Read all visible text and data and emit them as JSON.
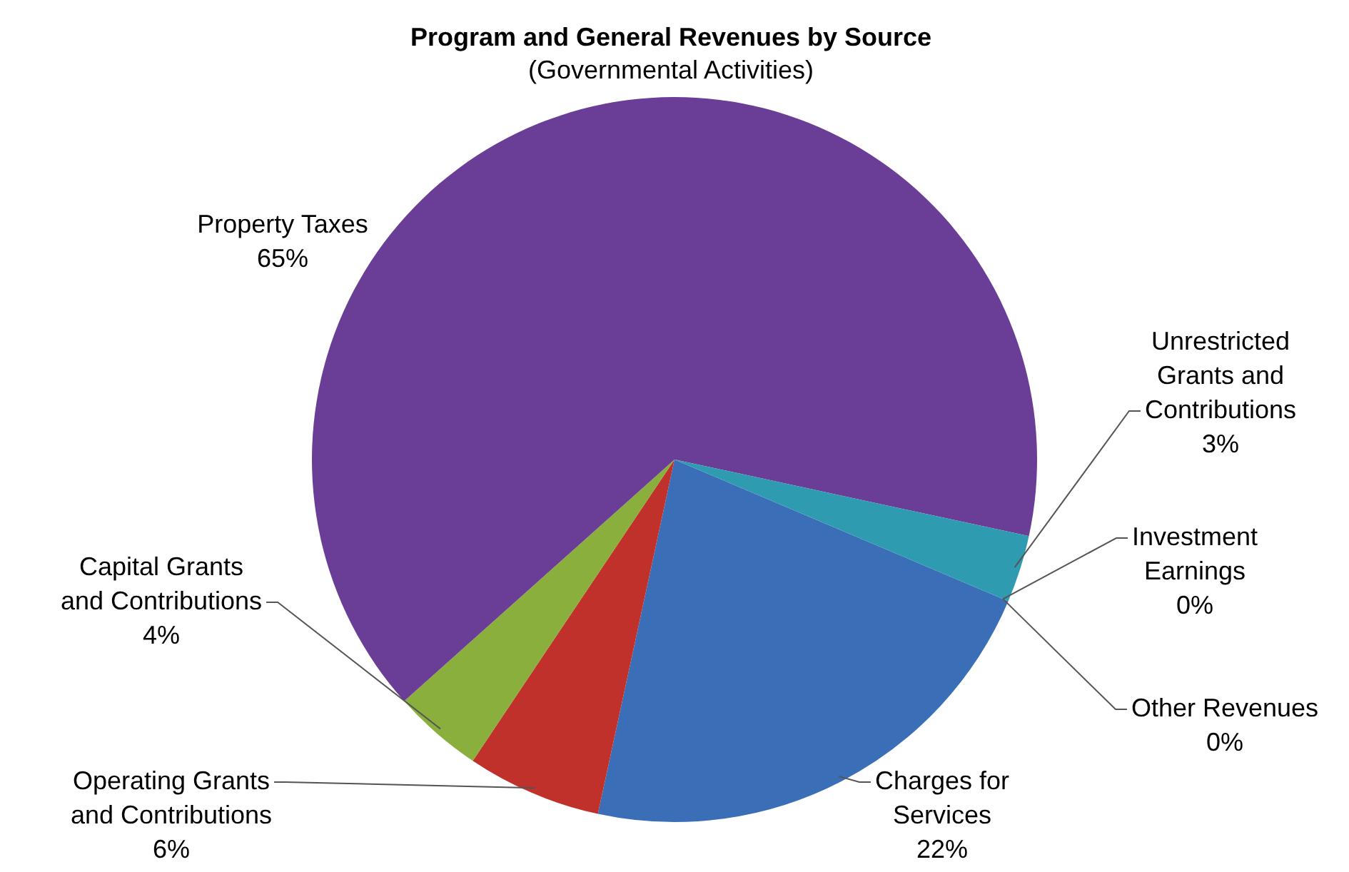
{
  "chart_data": {
    "type": "pie",
    "title": "Program and General Revenues by Source",
    "subtitle": "(Governmental Activities)",
    "categories": [
      "Charges for Services",
      "Operating Grants and Contributions",
      "Capital Grants and Contributions",
      "Property Taxes",
      "Unrestricted Grants and Contributions",
      "Investment Earnings",
      "Other Revenues"
    ],
    "values": [
      22,
      6,
      4,
      65,
      3,
      0,
      0
    ],
    "value_labels": [
      "22%",
      "6%",
      "4%",
      "65%",
      "3%",
      "0%",
      "0%"
    ],
    "colors": [
      "#3a6fb8",
      "#c0312b",
      "#8aaf3c",
      "#6a3d97",
      "#2f9bb0",
      "#e07b25",
      "#f5a04a"
    ]
  }
}
